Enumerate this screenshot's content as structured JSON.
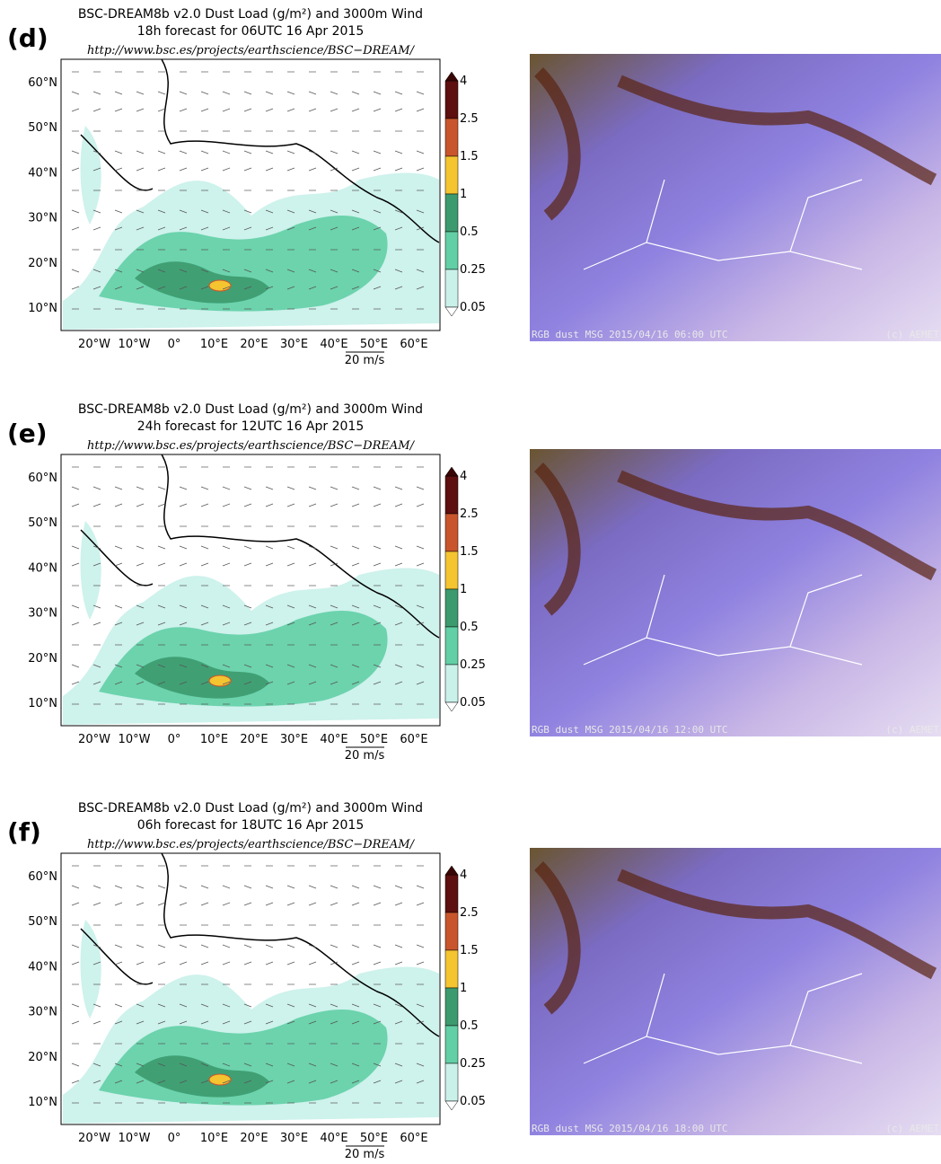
{
  "panels": [
    {
      "label": "(d)",
      "title_line1": "BSC-DREAM8b v2.0 Dust Load (g/m²) and 3000m Wind",
      "title_line2": "18h forecast for 06UTC 16 Apr 2015",
      "url": "http://www.bsc.es/projects/earthscience/BSC−DREAM/",
      "sat_caption": "RGB dust MSG 2015/04/16 06:00 UTC",
      "sat_credit": "(c) AEMET"
    },
    {
      "label": "(e)",
      "title_line1": "BSC-DREAM8b v2.0 Dust Load (g/m²) and 3000m Wind",
      "title_line2": "24h forecast for 12UTC 16 Apr 2015",
      "url": "http://www.bsc.es/projects/earthscience/BSC−DREAM/",
      "sat_caption": "RGB dust MSG 2015/04/16 12:00 UTC",
      "sat_credit": "(c) AEMET"
    },
    {
      "label": "(f)",
      "title_line1": "BSC-DREAM8b v2.0 Dust Load (g/m²) and 3000m Wind",
      "title_line2": "06h forecast for 18UTC 16 Apr 2015",
      "url": "http://www.bsc.es/projects/earthscience/BSC−DREAM/",
      "sat_caption": "RGB dust MSG 2015/04/16 18:00 UTC",
      "sat_credit": "(c) AEMET"
    }
  ],
  "map_axes": {
    "lat_labels": [
      "60°N",
      "50°N",
      "40°N",
      "30°N",
      "20°N",
      "10°N"
    ],
    "lon_labels": [
      "20°W",
      "10°W",
      "0°",
      "10°E",
      "20°E",
      "30°E",
      "40°E",
      "50°E",
      "60°E"
    ],
    "wind_scale": "20 m/s"
  },
  "colorbar": {
    "levels": [
      "4",
      "2.5",
      "1.5",
      "1",
      "0.5",
      "0.25",
      "0.05"
    ],
    "colors": [
      "#5e0f0f",
      "#c9552c",
      "#f4c431",
      "#3c9a6e",
      "#62cfa6",
      "#c9f1ea"
    ]
  }
}
